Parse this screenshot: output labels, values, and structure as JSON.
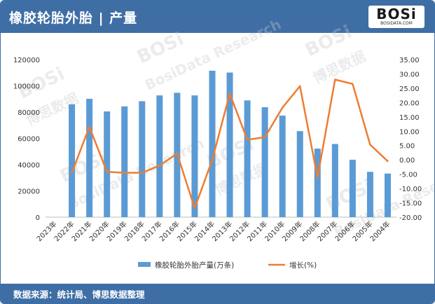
{
  "header": {
    "title": "橡胶轮胎外胎 | 产量"
  },
  "logo": {
    "main": "BOSi",
    "sub": "BOSIDATA.COM"
  },
  "footer": {
    "source": "数据来源：统计局、博思数据整理"
  },
  "watermark": {
    "text": "博思数据",
    "brand": "BOSi",
    "en": "BosiData Research"
  },
  "colors": {
    "bar": "#5b9bd5",
    "line": "#ed7d31",
    "header": "#3f6ea5"
  },
  "chart_data": {
    "type": "bar+line",
    "categories": [
      "2023年",
      "2022年",
      "2021年",
      "2020年",
      "2019年",
      "2018年",
      "2017年",
      "2016年",
      "2015年",
      "2014年",
      "2013年",
      "2012年",
      "2011年",
      "2010年",
      "2009年",
      "2008年",
      "2007年",
      "2006年",
      "2005年",
      "2004年"
    ],
    "series": [
      {
        "name": "橡胶轮胎外胎产量(万条)",
        "type": "bar",
        "axis": "left",
        "values": [
          null,
          85900,
          90100,
          80500,
          84300,
          88300,
          92700,
          94700,
          92700,
          111500,
          110100,
          88900,
          83700,
          77300,
          65500,
          52200,
          55700,
          43700,
          34500,
          33200
        ]
      },
      {
        "name": "增长(%)",
        "type": "line",
        "axis": "right",
        "values": [
          null,
          -4.5,
          11.5,
          -4.2,
          -4.5,
          -4.5,
          -2.0,
          2.2,
          -16.9,
          0.0,
          23.1,
          7.0,
          7.9,
          18.2,
          25.7,
          -6.2,
          28.0,
          26.5,
          5.3,
          -0.5
        ]
      }
    ],
    "y_left": {
      "min": 0,
      "max": 120000,
      "ticks": [
        "0",
        "20000",
        "40000",
        "60000",
        "80000",
        "100000",
        "120000"
      ]
    },
    "y_right": {
      "min": -20,
      "max": 35,
      "ticks": [
        "-20.00",
        "-15.00",
        "-10.00",
        "-5.00",
        "0.00",
        "5.00",
        "10.00",
        "15.00",
        "20.00",
        "25.00",
        "30.00",
        "35.00"
      ]
    },
    "legend_position": "bottom",
    "grid": false
  }
}
